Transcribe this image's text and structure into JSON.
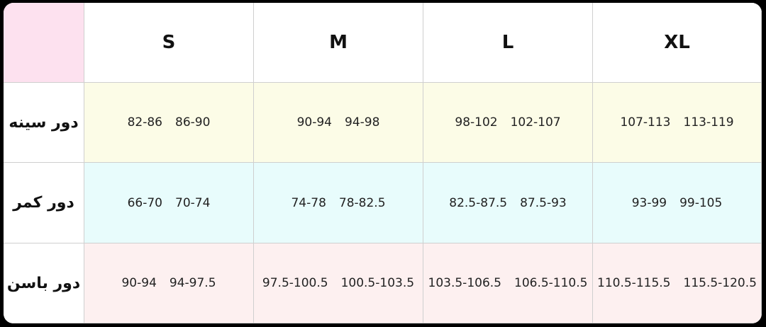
{
  "header": {
    "sizes": [
      "S",
      "M",
      "L",
      "XL"
    ]
  },
  "rows": [
    {
      "label": "دور سینه",
      "cells": [
        [
          "82-86",
          "86-90"
        ],
        [
          "90-94",
          "94-98"
        ],
        [
          "98-102",
          "102-107"
        ],
        [
          "107-113",
          "113-119"
        ]
      ]
    },
    {
      "label": "دور کمر",
      "cells": [
        [
          "66-70",
          "70-74"
        ],
        [
          "74-78",
          "78-82.5"
        ],
        [
          "82.5-87.5",
          "87.5-93"
        ],
        [
          "93-99",
          "99-105"
        ]
      ]
    },
    {
      "label": "دور باسن",
      "cells": [
        [
          "90-94",
          "94-97.5"
        ],
        [
          "97.5-100.5",
          "100.5-103.5"
        ],
        [
          "103.5-106.5",
          "106.5-110.5"
        ],
        [
          "110.5-115.5",
          "115.5-120.5"
        ]
      ]
    }
  ]
}
